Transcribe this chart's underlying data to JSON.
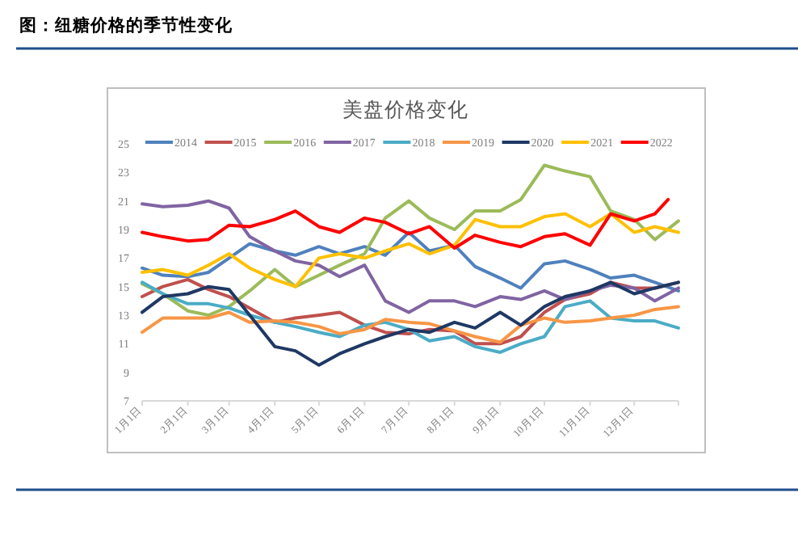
{
  "chart_data": {
    "type": "line",
    "title": "图：纽糖价格的季节性变化",
    "subtitle": "美盘价格变化",
    "x": [
      "--01-01",
      "--01-15",
      "--02-01",
      "--02-15",
      "--03-01",
      "--03-15",
      "--04-01",
      "--04-15",
      "--05-01",
      "--05-15",
      "--06-01",
      "--06-15",
      "--07-01",
      "--07-15",
      "--08-01",
      "--08-15",
      "--09-01",
      "--09-15",
      "--10-01",
      "--10-15",
      "--11-01",
      "--11-15",
      "--12-01",
      "--12-15",
      "--12-31"
    ],
    "xlim": [
      "--01-01",
      "--12-31"
    ],
    "xticks": [
      {
        "value": "--01-01",
        "label": "1月1日"
      },
      {
        "value": "--02-01",
        "label": "2月1日"
      },
      {
        "value": "--03-01",
        "label": "3月1日"
      },
      {
        "value": "--04-01",
        "label": "4月1日"
      },
      {
        "value": "--05-01",
        "label": "5月1日"
      },
      {
        "value": "--06-01",
        "label": "6月1日"
      },
      {
        "value": "--07-01",
        "label": "7月1日"
      },
      {
        "value": "--08-01",
        "label": "8月1日"
      },
      {
        "value": "--09-01",
        "label": "9月1日"
      },
      {
        "value": "--10-01",
        "label": "10月1日"
      },
      {
        "value": "--11-01",
        "label": "11月1日"
      },
      {
        "value": "--12-01",
        "label": "12月1日"
      },
      {
        "value": "--12-31",
        "label": null
      }
    ],
    "ylim": [
      7,
      25
    ],
    "yticks": [
      7,
      9,
      11,
      13,
      15,
      17,
      19,
      21,
      23,
      25
    ],
    "legend": "top",
    "marker": "none",
    "line_style": "solid",
    "series": [
      {
        "name": "2014",
        "color": "#4f81bd",
        "values": [
          16.3,
          15.8,
          15.7,
          16.0,
          17.0,
          18.0,
          17.5,
          17.2,
          17.8,
          17.3,
          17.8,
          17.2,
          18.8,
          17.5,
          17.9,
          16.4,
          15.6,
          14.9,
          16.6,
          16.8,
          16.2,
          15.6,
          15.8,
          15.3,
          14.7
        ]
      },
      {
        "name": "2015",
        "color": "#c0504d",
        "values": [
          14.3,
          15.0,
          15.5,
          14.8,
          14.3,
          13.5,
          12.5,
          12.8,
          13.0,
          13.2,
          12.3,
          11.8,
          11.7,
          12.0,
          11.9,
          11.0,
          11.0,
          11.5,
          13.2,
          14.1,
          14.5,
          15.3,
          14.9,
          14.9,
          15.3
        ]
      },
      {
        "name": "2016",
        "color": "#9bbb59",
        "values": [
          15.2,
          14.5,
          13.3,
          13.0,
          13.6,
          14.7,
          16.2,
          15.0,
          15.8,
          16.5,
          17.3,
          19.8,
          21.0,
          19.8,
          19.0,
          20.3,
          20.3,
          21.1,
          23.5,
          23.1,
          22.7,
          20.3,
          19.7,
          18.3,
          19.6
        ]
      },
      {
        "name": "2017",
        "color": "#8064a2",
        "values": [
          20.8,
          20.6,
          20.7,
          21.0,
          20.5,
          18.5,
          17.5,
          16.8,
          16.5,
          15.7,
          16.5,
          14.0,
          13.2,
          14.0,
          14.0,
          13.6,
          14.3,
          14.1,
          14.7,
          14.1,
          14.7,
          15.1,
          14.9,
          14.0,
          14.9
        ]
      },
      {
        "name": "2018",
        "color": "#4bacc6",
        "values": [
          15.3,
          14.5,
          13.8,
          13.8,
          13.5,
          13.0,
          12.5,
          12.2,
          11.8,
          11.5,
          12.3,
          12.5,
          12.0,
          11.2,
          11.5,
          10.8,
          10.4,
          11.0,
          11.5,
          13.6,
          14.0,
          12.8,
          12.6,
          12.6,
          12.1
        ]
      },
      {
        "name": "2019",
        "color": "#f79646",
        "values": [
          11.8,
          12.8,
          12.8,
          12.8,
          13.2,
          12.5,
          12.6,
          12.5,
          12.2,
          11.7,
          12.0,
          12.7,
          12.5,
          12.4,
          11.9,
          11.5,
          11.1,
          12.3,
          12.8,
          12.5,
          12.6,
          12.8,
          13.0,
          13.4,
          13.6
        ]
      },
      {
        "name": "2020",
        "color": "#1f3864",
        "values": [
          13.2,
          14.3,
          14.5,
          15.0,
          14.8,
          13.0,
          10.8,
          10.5,
          9.5,
          10.3,
          11.0,
          11.5,
          12.0,
          11.8,
          12.5,
          12.1,
          13.2,
          12.3,
          13.6,
          14.3,
          14.7,
          15.3,
          14.5,
          14.9,
          15.3
        ]
      },
      {
        "name": "2021",
        "color": "#ffc000",
        "values": [
          16.0,
          16.2,
          15.8,
          16.5,
          17.3,
          16.3,
          15.5,
          15.0,
          17.0,
          17.3,
          17.0,
          17.5,
          18.0,
          17.3,
          17.9,
          19.7,
          19.2,
          19.2,
          19.9,
          20.1,
          19.2,
          20.1,
          18.8,
          19.2,
          18.8
        ]
      },
      {
        "name": "2022",
        "color": "#ff0000",
        "x": [
          "--01-01",
          "--01-15",
          "--02-01",
          "--02-15",
          "--03-01",
          "--03-15",
          "--04-01",
          "--04-15",
          "--05-01",
          "--05-15",
          "--06-01",
          "--06-15",
          "--07-01",
          "--07-15",
          "--08-01",
          "--08-15",
          "--09-01",
          "--09-15",
          "--10-01",
          "--10-15",
          "--11-01",
          "--11-15",
          "--12-01",
          "--12-15",
          "--12-24"
        ],
        "values": [
          18.8,
          18.5,
          18.2,
          18.3,
          19.3,
          19.2,
          19.7,
          20.3,
          19.2,
          18.8,
          19.8,
          19.5,
          18.7,
          19.2,
          17.7,
          18.6,
          18.1,
          17.8,
          18.5,
          18.7,
          17.9,
          20.1,
          19.6,
          20.1,
          21.1
        ]
      }
    ]
  }
}
